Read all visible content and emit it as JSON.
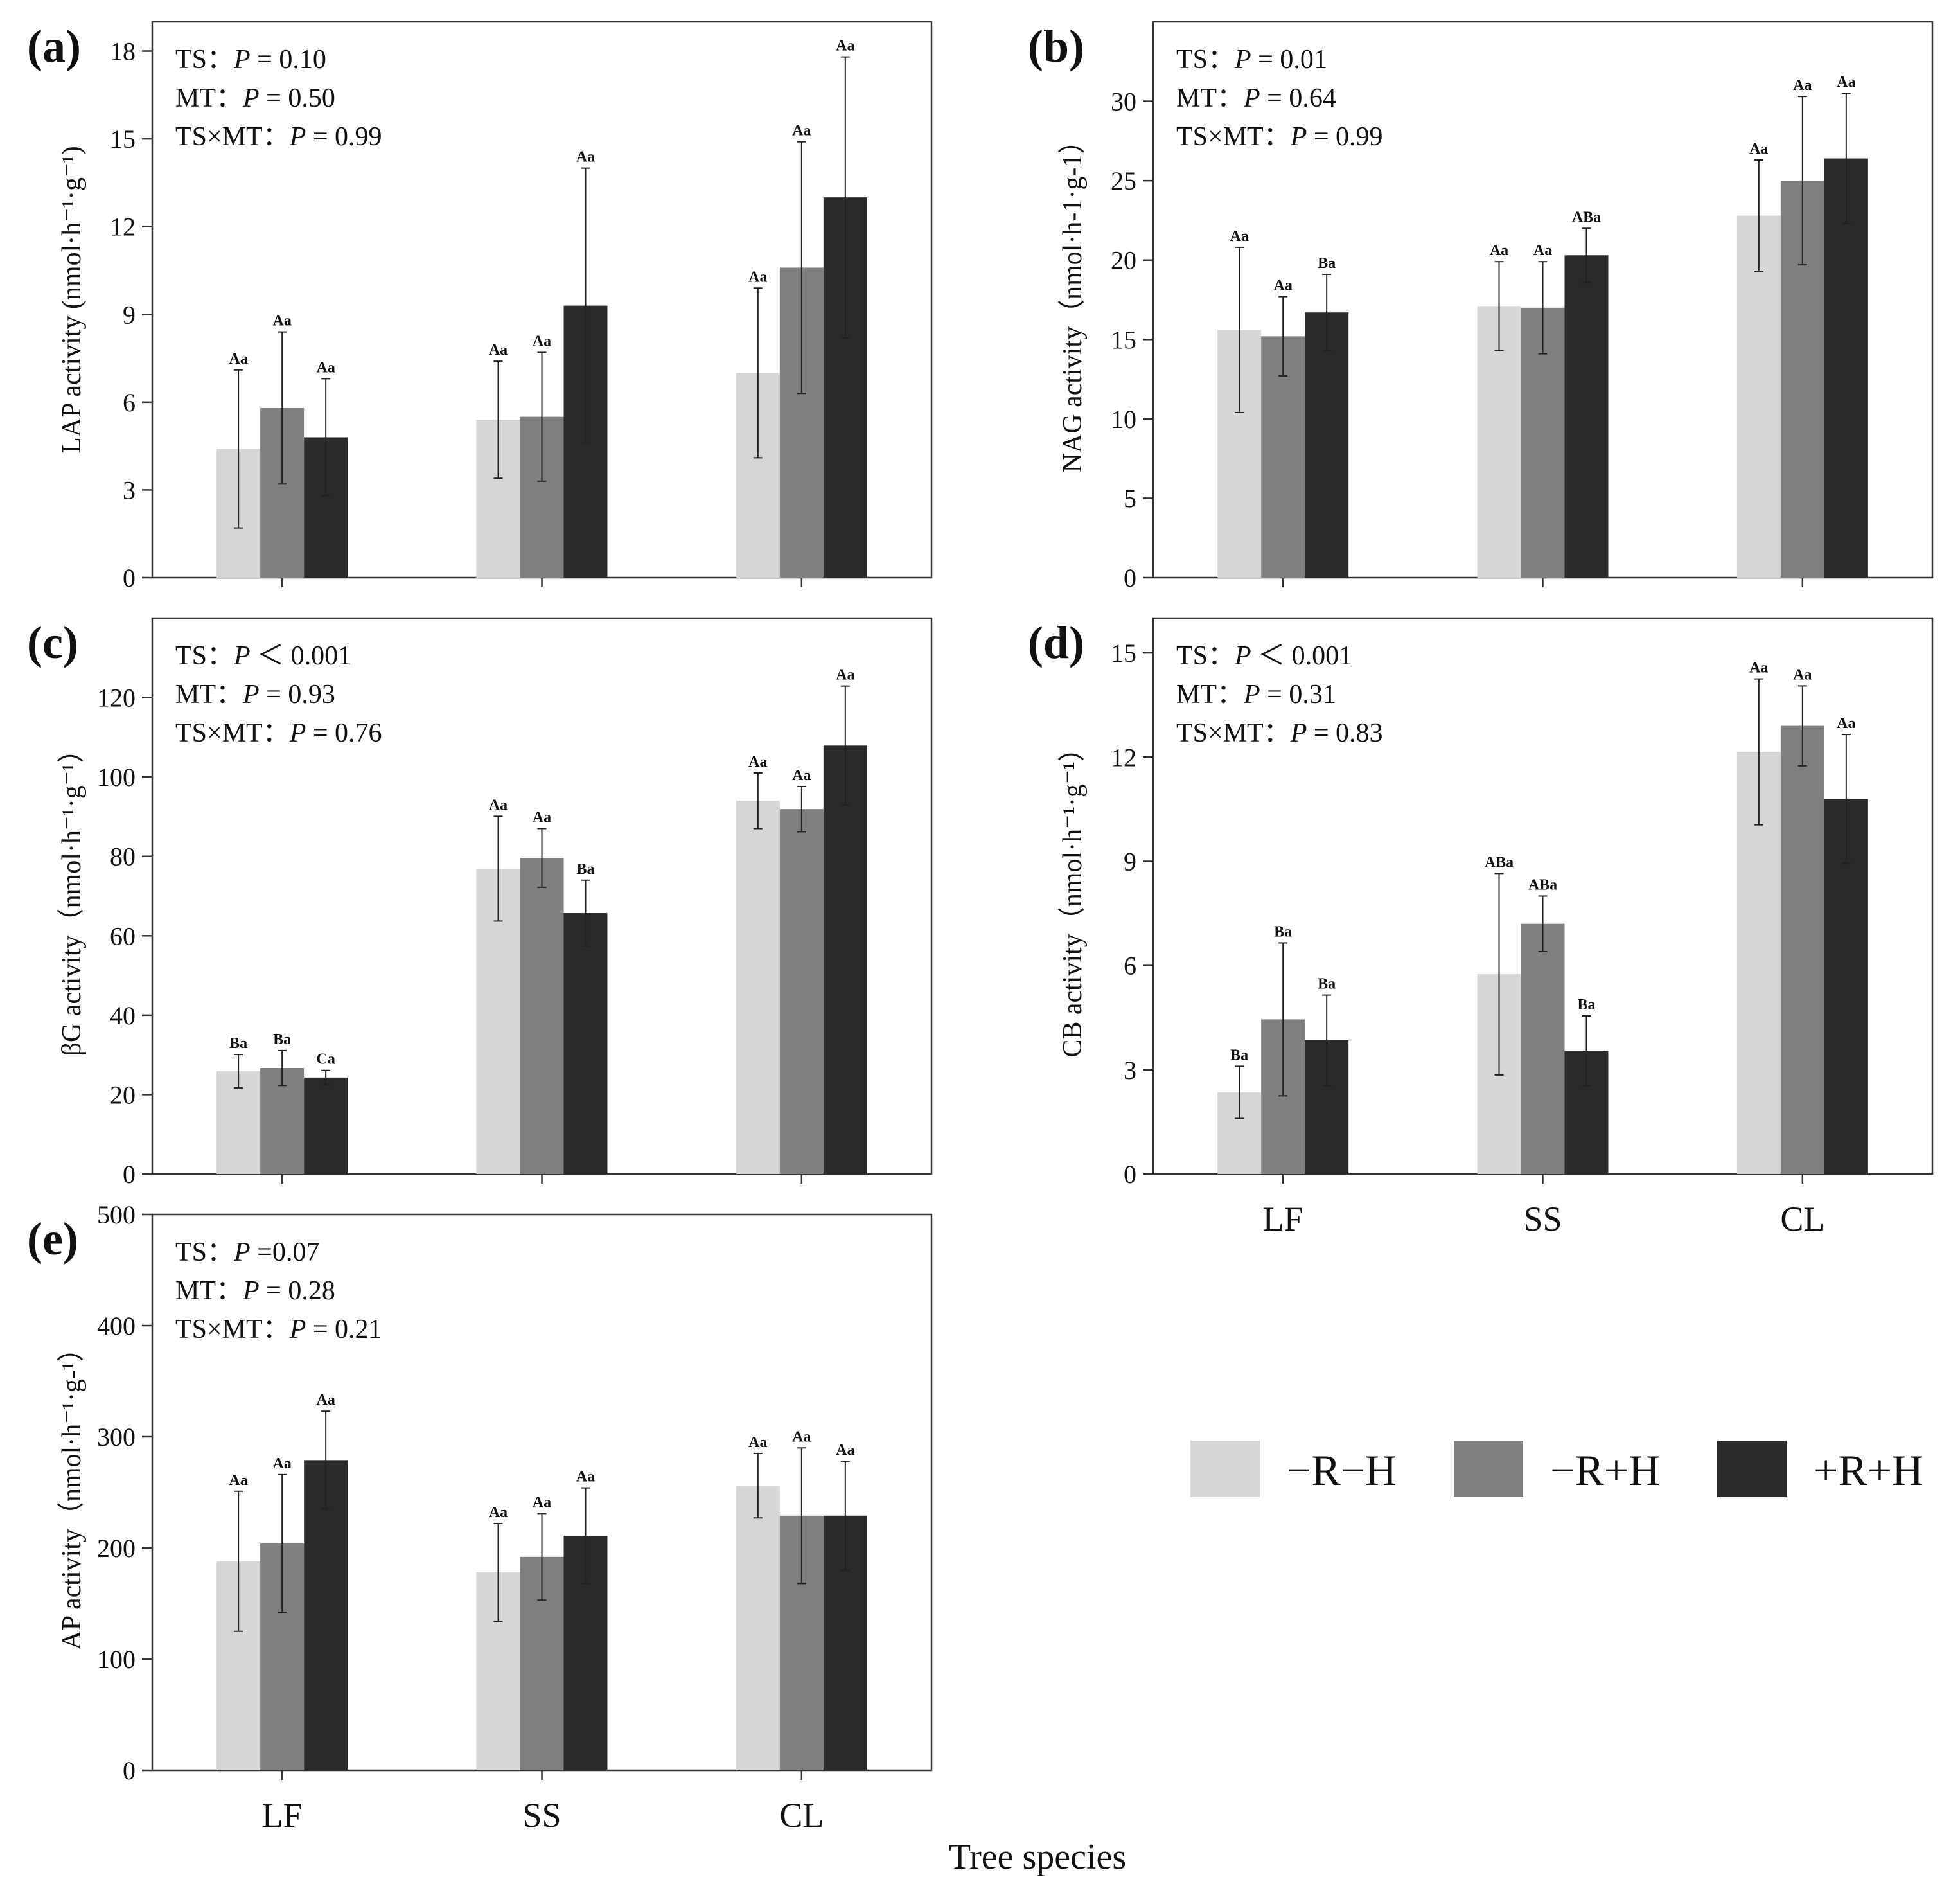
{
  "x_axis_title": "Tree species",
  "legend": [
    {
      "label": "−R−H",
      "color": "#d6d6d6"
    },
    {
      "label": "−R+H",
      "color": "#7f7f7f"
    },
    {
      "label": "+R+H",
      "color": "#2a2a2a"
    }
  ],
  "chart_data": [
    {
      "type": "bar",
      "panel": "(a)",
      "ylabel": "LAP activity (nmol·h⁻¹·g⁻¹)",
      "ylim": [
        0,
        19
      ],
      "yticks": [
        0,
        3,
        6,
        9,
        12,
        15,
        18
      ],
      "categories": [
        "LF",
        "SS",
        "CL"
      ],
      "show_category_labels": false,
      "stats": [
        "TS：P = 0.10",
        "MT：P = 0.50",
        "TS×MT：P = 0.99"
      ],
      "series": [
        {
          "values": [
            4.4,
            5.4,
            7.0
          ],
          "errors": [
            2.7,
            2.0,
            2.9
          ],
          "labels": [
            "Aa",
            "Aa",
            "Aa"
          ]
        },
        {
          "values": [
            5.8,
            5.5,
            10.6
          ],
          "errors": [
            2.6,
            2.2,
            4.3
          ],
          "labels": [
            "Aa",
            "Aa",
            "Aa"
          ]
        },
        {
          "values": [
            4.8,
            9.3,
            13.0
          ],
          "errors": [
            2.0,
            4.7,
            4.8
          ],
          "labels": [
            "Aa",
            "Aa",
            "Aa"
          ]
        }
      ]
    },
    {
      "type": "bar",
      "panel": "(b)",
      "ylabel": "NAG activity（nmol·h-1·g-1）",
      "ylim": [
        0,
        35
      ],
      "yticks": [
        0,
        5,
        10,
        15,
        20,
        25,
        30
      ],
      "categories": [
        "LF",
        "SS",
        "CL"
      ],
      "show_category_labels": false,
      "stats": [
        "TS：P = 0.01",
        "MT：P = 0.64",
        "TS×MT：P = 0.99"
      ],
      "series": [
        {
          "values": [
            15.6,
            17.1,
            22.8
          ],
          "errors": [
            5.2,
            2.8,
            3.5
          ],
          "labels": [
            "Aa",
            "Aa",
            "Aa"
          ]
        },
        {
          "values": [
            15.2,
            17.0,
            25.0
          ],
          "errors": [
            2.5,
            2.9,
            5.3
          ],
          "labels": [
            "Aa",
            "Aa",
            "Aa"
          ]
        },
        {
          "values": [
            16.7,
            20.3,
            26.4
          ],
          "errors": [
            2.4,
            1.7,
            4.1
          ],
          "labels": [
            "Ba",
            "ABa",
            "Aa"
          ]
        }
      ]
    },
    {
      "type": "bar",
      "panel": "(c)",
      "ylabel": "βG activity（nmol·h⁻¹·g⁻¹）",
      "ylim": [
        0,
        140
      ],
      "yticks": [
        0,
        20,
        40,
        60,
        80,
        100,
        120
      ],
      "categories": [
        "LF",
        "SS",
        "CL"
      ],
      "show_category_labels": false,
      "stats": [
        "TS：P ＜ 0.001",
        "MT：P = 0.93",
        "TS×MT：P = 0.76"
      ],
      "series": [
        {
          "values": [
            25.9,
            76.9,
            94.0
          ],
          "errors": [
            4.2,
            13.2,
            7.0
          ],
          "labels": [
            "Ba",
            "Aa",
            "Aa"
          ]
        },
        {
          "values": [
            26.7,
            79.6,
            91.9
          ],
          "errors": [
            4.4,
            7.4,
            5.7
          ],
          "labels": [
            "Ba",
            "Aa",
            "Aa"
          ]
        },
        {
          "values": [
            24.3,
            65.7,
            107.9
          ],
          "errors": [
            1.8,
            8.3,
            15.0
          ],
          "labels": [
            "Ca",
            "Ba",
            "Aa"
          ]
        }
      ]
    },
    {
      "type": "bar",
      "panel": "(d)",
      "ylabel": "CB activity（nmol·h⁻¹·g⁻¹）",
      "ylim": [
        0,
        16
      ],
      "yticks": [
        0,
        3,
        6,
        9,
        12,
        15
      ],
      "categories": [
        "LF",
        "SS",
        "CL"
      ],
      "show_category_labels": true,
      "stats": [
        "TS：P ＜ 0.001",
        "MT：P = 0.31",
        "TS×MT：P = 0.83"
      ],
      "series": [
        {
          "values": [
            2.35,
            5.75,
            12.15
          ],
          "errors": [
            0.75,
            2.9,
            2.1
          ],
          "labels": [
            "Ba",
            "ABa",
            "Aa"
          ]
        },
        {
          "values": [
            4.45,
            7.2,
            12.9
          ],
          "errors": [
            2.2,
            0.8,
            1.15
          ],
          "labels": [
            "Ba",
            "ABa",
            "Aa"
          ]
        },
        {
          "values": [
            3.85,
            3.55,
            10.8
          ],
          "errors": [
            1.3,
            1.0,
            1.85
          ],
          "labels": [
            "Ba",
            "Ba",
            "Aa"
          ]
        }
      ]
    },
    {
      "type": "bar",
      "panel": "(e)",
      "ylabel": "AP activity（nmol·h⁻¹·g-¹）",
      "ylim": [
        0,
        500
      ],
      "yticks": [
        0,
        100,
        200,
        300,
        400,
        500
      ],
      "categories": [
        "LF",
        "SS",
        "CL"
      ],
      "show_category_labels": true,
      "stats": [
        "TS：P =0.07",
        "MT：P = 0.28",
        "TS×MT：P = 0.21"
      ],
      "series": [
        {
          "values": [
            188,
            178,
            256
          ],
          "errors": [
            63,
            44,
            29
          ],
          "labels": [
            "Aa",
            "Aa",
            "Aa"
          ]
        },
        {
          "values": [
            204,
            192,
            229
          ],
          "errors": [
            62,
            39,
            61
          ],
          "labels": [
            "Aa",
            "Aa",
            "Aa"
          ]
        },
        {
          "values": [
            279,
            211,
            229
          ],
          "errors": [
            44,
            43,
            49
          ],
          "labels": [
            "Aa",
            "Aa",
            "Aa"
          ]
        }
      ]
    }
  ]
}
